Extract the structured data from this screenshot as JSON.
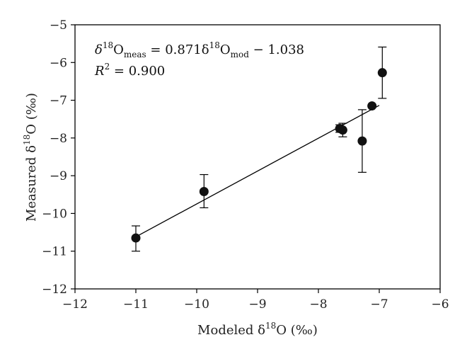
{
  "chart_data": {
    "type": "scatter",
    "xlabel": {
      "prefix": "Modeled δ",
      "sup": "18",
      "suffix": "O (‰)"
    },
    "ylabel": {
      "prefix": "Measured δ",
      "sup": "18",
      "suffix": "O (‰)"
    },
    "xlim": [
      -12,
      -6
    ],
    "ylim": [
      -12,
      -5
    ],
    "xticks": [
      -12,
      -11,
      -10,
      -9,
      -8,
      -7,
      -6
    ],
    "yticks": [
      -12,
      -11,
      -10,
      -9,
      -8,
      -7,
      -6,
      -5
    ],
    "xtick_labels": [
      "−12",
      "−11",
      "−10",
      "−9",
      "−8",
      "−7",
      "−6"
    ],
    "ytick_labels": [
      "−12",
      "−11",
      "−10",
      "−9",
      "−8",
      "−7",
      "−6",
      "−5"
    ],
    "points": [
      {
        "x": -11.0,
        "y": -10.65,
        "err_low": 0.35,
        "err_high": 0.32
      },
      {
        "x": -9.88,
        "y": -9.42,
        "err_low": 0.43,
        "err_high": 0.45
      },
      {
        "x": -7.65,
        "y": -7.75,
        "err_low": 0.1,
        "err_high": 0.1
      },
      {
        "x": -7.6,
        "y": -7.79,
        "err_low": 0.18,
        "err_high": 0.18
      },
      {
        "x": -7.28,
        "y": -8.08,
        "err_low": 0.83,
        "err_high": 0.83
      },
      {
        "x": -7.12,
        "y": -7.15,
        "err_low": 0.0,
        "err_high": 0.0
      },
      {
        "x": -6.95,
        "y": -6.27,
        "err_low": 0.68,
        "err_high": 0.68
      }
    ],
    "fit": {
      "slope": 0.871,
      "intercept": -1.038,
      "x_range": [
        -11.0,
        -7.0
      ]
    },
    "annotation": {
      "eq_lhs": "δ",
      "eq_lhs_sup": "18",
      "eq_lhs_base": "O",
      "eq_lhs_sub": "meas",
      "eq_mid": " = 0.871δ",
      "eq_mid_sup": "18",
      "eq_mid_base": "O",
      "eq_mid_sub": "mod",
      "eq_tail": " − 1.038",
      "r2_var": "R",
      "r2_sup": "2",
      "r2_value": " = 0.900"
    },
    "grid": false,
    "legend": "none"
  }
}
